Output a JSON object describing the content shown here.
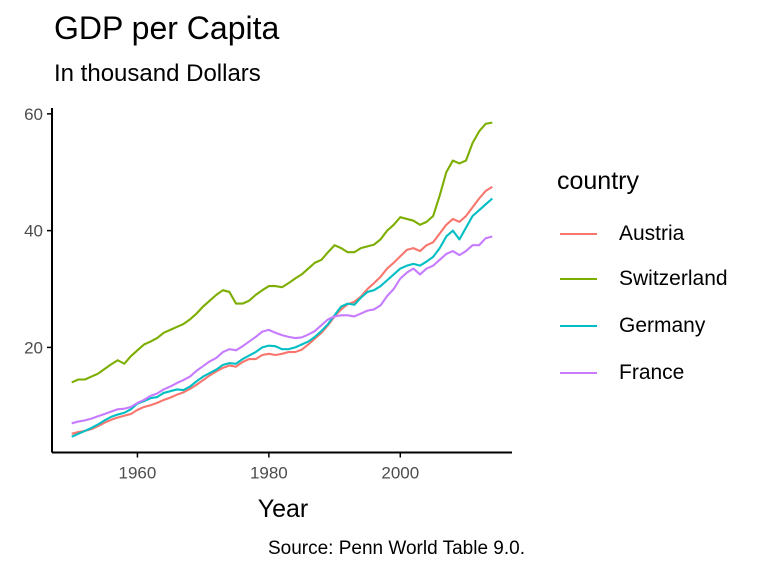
{
  "chart_data": {
    "type": "line",
    "title": "GDP per Capita",
    "subtitle": "In thousand Dollars",
    "xlabel": "Year",
    "ylabel": "",
    "caption": "Source: Penn World Table 9.0.",
    "legend_title": "country",
    "legend_position": "right",
    "grid": false,
    "xlim": [
      1947,
      2017
    ],
    "ylim": [
      2,
      61
    ],
    "xticks": [
      1960,
      1980,
      2000
    ],
    "yticks": [
      20,
      40,
      60
    ],
    "x": [
      1950,
      1951,
      1952,
      1953,
      1954,
      1955,
      1956,
      1957,
      1958,
      1959,
      1960,
      1961,
      1962,
      1963,
      1964,
      1965,
      1966,
      1967,
      1968,
      1969,
      1970,
      1971,
      1972,
      1973,
      1974,
      1975,
      1976,
      1977,
      1978,
      1979,
      1980,
      1981,
      1982,
      1983,
      1984,
      1985,
      1986,
      1987,
      1988,
      1989,
      1990,
      1991,
      1992,
      1993,
      1994,
      1995,
      1996,
      1997,
      1998,
      1999,
      2000,
      2001,
      2002,
      2003,
      2004,
      2005,
      2006,
      2007,
      2008,
      2009,
      2010,
      2011,
      2012,
      2013,
      2014
    ],
    "series": [
      {
        "name": "Austria",
        "color": "#F8766D",
        "values": [
          5.2,
          5.5,
          5.7,
          6.0,
          6.5,
          7.1,
          7.6,
          8.0,
          8.3,
          8.6,
          9.3,
          9.8,
          10.1,
          10.5,
          11.0,
          11.4,
          11.9,
          12.3,
          12.9,
          13.6,
          14.4,
          15.2,
          15.9,
          16.5,
          16.9,
          16.7,
          17.5,
          18.0,
          18.0,
          18.7,
          18.9,
          18.7,
          18.9,
          19.2,
          19.2,
          19.6,
          20.5,
          21.5,
          22.5,
          23.8,
          25.3,
          26.5,
          27.4,
          27.8,
          28.7,
          30.0,
          31.0,
          32.1,
          33.5,
          34.5,
          35.6,
          36.7,
          37.0,
          36.5,
          37.5,
          38.0,
          39.5,
          41.0,
          42.0,
          41.5,
          42.5,
          44.0,
          45.5,
          46.8,
          47.5
        ]
      },
      {
        "name": "Switzerland",
        "color": "#7CAE00",
        "values": [
          14.0,
          14.5,
          14.5,
          15.0,
          15.5,
          16.3,
          17.1,
          17.8,
          17.2,
          18.5,
          19.5,
          20.5,
          21.0,
          21.6,
          22.5,
          23.0,
          23.5,
          24.0,
          24.8,
          25.8,
          27.0,
          28.0,
          29.0,
          29.8,
          29.5,
          27.5,
          27.5,
          28.0,
          29.0,
          29.8,
          30.5,
          30.5,
          30.3,
          31.0,
          31.8,
          32.5,
          33.5,
          34.5,
          35.0,
          36.3,
          37.5,
          37.0,
          36.3,
          36.3,
          37.0,
          37.3,
          37.6,
          38.5,
          40.0,
          41.0,
          42.3,
          42.0,
          41.7,
          41.0,
          41.5,
          42.5,
          46.0,
          50.0,
          52.0,
          51.5,
          52.0,
          55.0,
          57.0,
          58.3,
          58.5
        ]
      },
      {
        "name": "Germany",
        "color": "#00BFC4",
        "values": [
          4.7,
          5.2,
          5.7,
          6.2,
          6.8,
          7.5,
          8.1,
          8.5,
          8.8,
          9.4,
          10.4,
          10.8,
          11.3,
          11.5,
          12.2,
          12.5,
          12.8,
          12.7,
          13.3,
          14.2,
          15.0,
          15.6,
          16.2,
          17.0,
          17.3,
          17.2,
          18.0,
          18.6,
          19.2,
          20.0,
          20.3,
          20.2,
          19.7,
          19.7,
          20.0,
          20.5,
          21.0,
          21.8,
          22.8,
          24.0,
          25.5,
          27.0,
          27.5,
          27.3,
          28.5,
          29.5,
          29.8,
          30.5,
          31.5,
          32.5,
          33.5,
          34.0,
          34.3,
          34.0,
          34.7,
          35.5,
          37.0,
          39.0,
          40.0,
          38.5,
          40.5,
          42.5,
          43.5,
          44.5,
          45.5
        ]
      },
      {
        "name": "France",
        "color": "#C77CFF",
        "values": [
          7.0,
          7.3,
          7.5,
          7.8,
          8.2,
          8.6,
          9.0,
          9.4,
          9.5,
          9.8,
          10.5,
          11.0,
          11.7,
          12.1,
          12.8,
          13.3,
          13.9,
          14.4,
          15.0,
          16.0,
          16.8,
          17.6,
          18.2,
          19.2,
          19.7,
          19.5,
          20.2,
          21.0,
          21.8,
          22.7,
          23.0,
          22.5,
          22.1,
          21.8,
          21.6,
          21.7,
          22.2,
          22.8,
          23.8,
          24.8,
          25.3,
          25.5,
          25.5,
          25.3,
          25.8,
          26.3,
          26.5,
          27.2,
          28.8,
          30.0,
          31.8,
          32.8,
          33.5,
          32.5,
          33.5,
          34.0,
          35.0,
          36.0,
          36.5,
          35.8,
          36.5,
          37.5,
          37.5,
          38.7,
          39.0
        ]
      }
    ]
  }
}
